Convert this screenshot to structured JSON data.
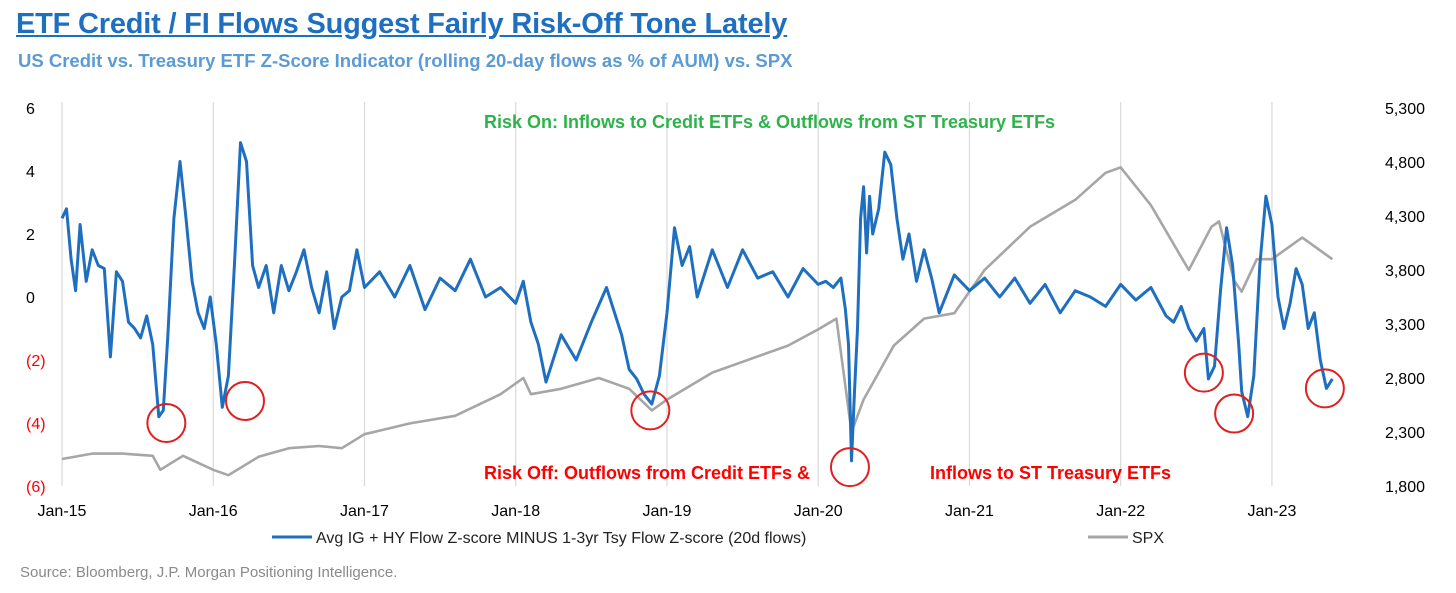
{
  "header": {
    "title": "ETF Credit / FI Flows Suggest Fairly Risk-Off Tone Lately",
    "subtitle": "US Credit vs. Treasury ETF Z-Score Indicator (rolling 20-day flows as % of AUM) vs. SPX"
  },
  "footer": {
    "source": "Source: Bloomberg, J.P. Morgan Positioning Intelligence."
  },
  "colors": {
    "zscore": "#1f6fc0",
    "spx": "#a6a6a6",
    "risk_on": "#2db34a",
    "risk_off": "#ff0000",
    "negative_ticks": "#ff0000",
    "circles": "#e02020",
    "grid": "#d9d9d9"
  },
  "chart_data": {
    "type": "line",
    "title": "US Credit vs. Treasury ETF Z-Score Indicator (rolling 20-day flows as % of AUM) vs. SPX",
    "x_range": [
      2015.0,
      2023.45
    ],
    "x_ticks": [
      {
        "label": "Jan-15",
        "x": 2015.0
      },
      {
        "label": "Jan-16",
        "x": 2016.0
      },
      {
        "label": "Jan-17",
        "x": 2017.0
      },
      {
        "label": "Jan-18",
        "x": 2018.0
      },
      {
        "label": "Jan-19",
        "x": 2019.0
      },
      {
        "label": "Jan-20",
        "x": 2020.0
      },
      {
        "label": "Jan-21",
        "x": 2021.0
      },
      {
        "label": "Jan-22",
        "x": 2022.0
      },
      {
        "label": "Jan-23",
        "x": 2023.0
      }
    ],
    "y_left": {
      "range": [
        -6,
        6
      ],
      "ticks": [
        {
          "label": "6",
          "v": 6
        },
        {
          "label": "4",
          "v": 4
        },
        {
          "label": "2",
          "v": 2
        },
        {
          "label": "0",
          "v": 0
        },
        {
          "label": "(2)",
          "v": -2
        },
        {
          "label": "(4)",
          "v": -4
        },
        {
          "label": "(6)",
          "v": -6
        }
      ]
    },
    "y_right": {
      "range": [
        1800,
        5300
      ],
      "ticks": [
        {
          "label": "5,300",
          "v": 5300
        },
        {
          "label": "4,800",
          "v": 4800
        },
        {
          "label": "4,300",
          "v": 4300
        },
        {
          "label": "3,800",
          "v": 3800
        },
        {
          "label": "3,300",
          "v": 3300
        },
        {
          "label": "2,800",
          "v": 2800
        },
        {
          "label": "2,300",
          "v": 2300
        },
        {
          "label": "1,800",
          "v": 1800
        }
      ]
    },
    "series": [
      {
        "name": "Avg IG + HY Flow Z-score MINUS 1-3yr Tsy Flow Z-score  (20d flows)",
        "axis": "left",
        "x": [
          2015.0,
          2015.03,
          2015.06,
          2015.09,
          2015.12,
          2015.16,
          2015.2,
          2015.24,
          2015.28,
          2015.32,
          2015.36,
          2015.4,
          2015.44,
          2015.48,
          2015.52,
          2015.56,
          2015.6,
          2015.64,
          2015.67,
          2015.7,
          2015.74,
          2015.78,
          2015.82,
          2015.86,
          2015.9,
          2015.94,
          2015.98,
          2016.02,
          2016.06,
          2016.1,
          2016.14,
          2016.18,
          2016.22,
          2016.26,
          2016.3,
          2016.35,
          2016.4,
          2016.45,
          2016.5,
          2016.55,
          2016.6,
          2016.65,
          2016.7,
          2016.75,
          2016.8,
          2016.85,
          2016.9,
          2016.95,
          2017.0,
          2017.1,
          2017.2,
          2017.3,
          2017.4,
          2017.5,
          2017.6,
          2017.7,
          2017.8,
          2017.9,
          2018.0,
          2018.05,
          2018.1,
          2018.15,
          2018.2,
          2018.3,
          2018.4,
          2018.5,
          2018.6,
          2018.7,
          2018.75,
          2018.8,
          2018.85,
          2018.9,
          2018.95,
          2019.0,
          2019.05,
          2019.1,
          2019.15,
          2019.2,
          2019.3,
          2019.4,
          2019.5,
          2019.6,
          2019.7,
          2019.8,
          2019.9,
          2020.0,
          2020.05,
          2020.1,
          2020.15,
          2020.18,
          2020.2,
          2020.22,
          2020.24,
          2020.26,
          2020.28,
          2020.3,
          2020.32,
          2020.34,
          2020.36,
          2020.4,
          2020.44,
          2020.48,
          2020.52,
          2020.56,
          2020.6,
          2020.65,
          2020.7,
          2020.75,
          2020.8,
          2020.9,
          2021.0,
          2021.1,
          2021.2,
          2021.3,
          2021.4,
          2021.5,
          2021.6,
          2021.7,
          2021.8,
          2021.9,
          2022.0,
          2022.1,
          2022.2,
          2022.3,
          2022.35,
          2022.4,
          2022.45,
          2022.5,
          2022.55,
          2022.58,
          2022.62,
          2022.66,
          2022.7,
          2022.74,
          2022.78,
          2022.8,
          2022.84,
          2022.88,
          2022.92,
          2022.96,
          2023.0,
          2023.04,
          2023.08,
          2023.12,
          2023.16,
          2023.2,
          2023.24,
          2023.28,
          2023.32,
          2023.36,
          2023.4
        ],
        "y": [
          2.5,
          2.8,
          1.2,
          0.2,
          2.3,
          0.5,
          1.5,
          1.0,
          0.9,
          -1.9,
          0.8,
          0.5,
          -0.8,
          -1.0,
          -1.3,
          -0.6,
          -1.5,
          -3.8,
          -3.6,
          -1.2,
          2.5,
          4.3,
          2.5,
          0.5,
          -0.5,
          -1.0,
          0.0,
          -1.5,
          -3.5,
          -2.5,
          1.0,
          4.9,
          4.3,
          1.0,
          0.3,
          1.0,
          -0.5,
          1.0,
          0.2,
          0.8,
          1.5,
          0.3,
          -0.5,
          0.8,
          -1.0,
          0.0,
          0.2,
          1.5,
          0.3,
          0.8,
          0.0,
          1.0,
          -0.4,
          0.6,
          0.2,
          1.2,
          0.0,
          0.3,
          -0.2,
          0.5,
          -0.8,
          -1.5,
          -2.7,
          -1.2,
          -2.0,
          -0.8,
          0.3,
          -1.2,
          -2.3,
          -2.6,
          -3.1,
          -3.4,
          -2.5,
          -0.5,
          2.2,
          1.0,
          1.6,
          0.0,
          1.5,
          0.3,
          1.5,
          0.6,
          0.8,
          0.0,
          0.9,
          0.4,
          0.5,
          0.3,
          0.6,
          -0.4,
          -1.5,
          -5.2,
          -3.0,
          -1.0,
          2.5,
          3.5,
          1.4,
          3.2,
          2.0,
          2.8,
          4.6,
          4.2,
          2.5,
          1.2,
          2.0,
          0.5,
          1.5,
          0.6,
          -0.5,
          0.7,
          0.2,
          0.6,
          0.0,
          0.6,
          -0.2,
          0.4,
          -0.5,
          0.2,
          0.0,
          -0.3,
          0.4,
          -0.1,
          0.3,
          -0.6,
          -0.8,
          -0.3,
          -1.0,
          -1.4,
          -1.0,
          -2.6,
          -2.2,
          0.2,
          2.2,
          1.0,
          -1.5,
          -3.0,
          -3.8,
          -2.5,
          1.0,
          3.2,
          2.3,
          0.0,
          -1.0,
          -0.2,
          0.9,
          0.4,
          -1.0,
          -0.5,
          -2.0,
          -2.9,
          -2.6
        ]
      },
      {
        "name": "SPX",
        "axis": "right",
        "x": [
          2015.0,
          2015.2,
          2015.4,
          2015.6,
          2015.65,
          2015.8,
          2016.0,
          2016.1,
          2016.3,
          2016.5,
          2016.7,
          2016.85,
          2017.0,
          2017.3,
          2017.6,
          2017.9,
          2018.05,
          2018.1,
          2018.3,
          2018.55,
          2018.75,
          2018.9,
          2019.0,
          2019.3,
          2019.5,
          2019.8,
          2020.0,
          2020.12,
          2020.22,
          2020.3,
          2020.5,
          2020.7,
          2020.9,
          2021.1,
          2021.4,
          2021.7,
          2021.9,
          2022.0,
          2022.2,
          2022.45,
          2022.6,
          2022.65,
          2022.75,
          2022.8,
          2022.9,
          2023.0,
          2023.2,
          2023.4
        ],
        "y": [
          2050,
          2100,
          2100,
          2080,
          1950,
          2080,
          1950,
          1900,
          2070,
          2150,
          2170,
          2150,
          2280,
          2380,
          2450,
          2650,
          2800,
          2650,
          2700,
          2800,
          2700,
          2500,
          2600,
          2850,
          2950,
          3100,
          3250,
          3350,
          2300,
          2600,
          3100,
          3350,
          3400,
          3800,
          4200,
          4450,
          4700,
          4750,
          4400,
          3800,
          4200,
          4250,
          3700,
          3600,
          3900,
          3900,
          4100,
          3900
        ]
      }
    ],
    "annotations": {
      "risk_on": "Risk On: Inflows to Credit ETFs & Outflows from ST Treasury ETFs",
      "risk_off_a": "Risk Off: Outflows from Credit ETFs &",
      "risk_off_b": "Inflows to ST Treasury ETFs"
    },
    "highlight_circles": [
      {
        "x": 2015.69,
        "y": -4.0
      },
      {
        "x": 2016.21,
        "y": -3.3
      },
      {
        "x": 2018.89,
        "y": -3.6
      },
      {
        "x": 2020.21,
        "y": -5.4
      },
      {
        "x": 2022.55,
        "y": -2.4
      },
      {
        "x": 2022.75,
        "y": -3.7
      },
      {
        "x": 2023.35,
        "y": -2.9
      }
    ],
    "legend": {
      "position": "bottom"
    }
  }
}
